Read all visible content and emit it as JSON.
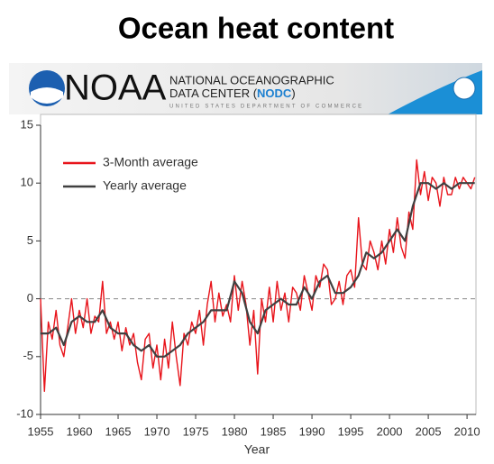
{
  "banner": {
    "logo": "NOAA",
    "line1": "NATIONAL OCEANOGRAPHIC",
    "line2": "DATA CENTER (",
    "acronym": "NODC",
    "line2_end": ")",
    "line3": "UNITED STATES DEPARTMENT OF COMMERCE"
  },
  "chart_data": {
    "type": "line",
    "title": "Ocean heat content",
    "x_label": "Year",
    "xlim": [
      1955,
      2011.5
    ],
    "xticks": [
      1955,
      1960,
      1965,
      1970,
      1975,
      1980,
      1985,
      1990,
      1995,
      2000,
      2005,
      2010
    ],
    "ylim": [
      -10,
      15
    ],
    "yticks": [
      -10,
      -5,
      0,
      5,
      10,
      15
    ],
    "reference_line": 0,
    "legend": "upper left",
    "series": [
      {
        "name": "3-Month average",
        "color": "#e8141b",
        "x": [
          1955,
          1955.5,
          1956,
          1956.5,
          1957,
          1957.5,
          1958,
          1958.5,
          1959,
          1959.5,
          1960,
          1960.5,
          1961,
          1961.5,
          1962,
          1962.5,
          1963,
          1963.5,
          1964,
          1964.5,
          1965,
          1965.5,
          1966,
          1966.5,
          1967,
          1967.5,
          1968,
          1968.5,
          1969,
          1969.5,
          1970,
          1970.5,
          1971,
          1971.5,
          1972,
          1972.5,
          1973,
          1973.5,
          1974,
          1974.5,
          1975,
          1975.5,
          1976,
          1976.5,
          1977,
          1977.5,
          1978,
          1978.5,
          1979,
          1979.5,
          1980,
          1980.5,
          1981,
          1981.5,
          1982,
          1982.5,
          1983,
          1983.5,
          1984,
          1984.5,
          1985,
          1985.5,
          1986,
          1986.5,
          1987,
          1987.5,
          1988,
          1988.5,
          1989,
          1989.5,
          1990,
          1990.5,
          1991,
          1991.5,
          1992,
          1992.5,
          1993,
          1993.5,
          1994,
          1994.5,
          1995,
          1995.5,
          1996,
          1996.5,
          1997,
          1997.5,
          1998,
          1998.5,
          1999,
          1999.5,
          2000,
          2000.5,
          2001,
          2001.5,
          2002,
          2002.5,
          2003,
          2003.5,
          2004,
          2004.5,
          2005,
          2005.5,
          2006,
          2006.5,
          2007,
          2007.5,
          2008,
          2008.5,
          2009,
          2009.5,
          2010,
          2010.5,
          2011
        ],
        "values": [
          0,
          -8,
          -2,
          -3.5,
          -1,
          -4,
          -5,
          -2.5,
          0,
          -3,
          -1,
          -2.5,
          0,
          -3,
          -1.5,
          -2,
          1.5,
          -3,
          -2,
          -3.5,
          -2,
          -4.5,
          -2.5,
          -4,
          -3,
          -5.5,
          -7,
          -3.5,
          -3,
          -6,
          -4,
          -7,
          -3.5,
          -6,
          -2,
          -5,
          -7.5,
          -3,
          -4,
          -2,
          -3,
          -1,
          -4,
          -0.5,
          1.5,
          -2,
          0.5,
          -1.5,
          -0.5,
          -2,
          2,
          -1,
          1.5,
          -0.5,
          -4,
          -1,
          -6.5,
          0,
          -2,
          1,
          -2,
          1.5,
          -1,
          0.5,
          -2,
          1,
          0.5,
          -1,
          2,
          0.5,
          -1,
          2,
          1,
          3,
          2.5,
          -0.5,
          0,
          1.5,
          -0.5,
          2,
          2.5,
          1,
          7,
          3,
          2.5,
          5,
          4,
          2.5,
          5,
          3,
          6,
          4,
          7,
          4.5,
          3.5,
          7.5,
          6,
          12,
          9,
          11,
          8.5,
          10.5,
          10,
          8,
          10.5,
          9,
          9,
          10.5,
          9.5,
          10.5,
          10,
          9.5,
          10.5
        ]
      },
      {
        "name": "Yearly average",
        "color": "#404040",
        "x": [
          1955,
          1956,
          1957,
          1958,
          1959,
          1960,
          1961,
          1962,
          1963,
          1964,
          1965,
          1966,
          1967,
          1968,
          1969,
          1970,
          1971,
          1972,
          1973,
          1974,
          1975,
          1976,
          1977,
          1978,
          1979,
          1980,
          1981,
          1982,
          1983,
          1984,
          1985,
          1986,
          1987,
          1988,
          1989,
          1990,
          1991,
          1992,
          1993,
          1994,
          1995,
          1996,
          1997,
          1998,
          1999,
          2000,
          2001,
          2002,
          2003,
          2004,
          2005,
          2006,
          2007,
          2008,
          2009,
          2010,
          2011
        ],
        "values": [
          -3,
          -3,
          -2.5,
          -4,
          -2,
          -1.5,
          -2,
          -2,
          -1,
          -2.5,
          -3,
          -3,
          -4,
          -4.5,
          -4,
          -5,
          -5,
          -4.5,
          -4,
          -3,
          -2.5,
          -2,
          -1,
          -1,
          -1,
          1.5,
          0.5,
          -2,
          -3,
          -1,
          -0.5,
          0,
          -0.5,
          -0.5,
          1,
          0,
          1.5,
          2,
          0.5,
          0.5,
          1,
          2,
          4,
          3.5,
          4,
          5,
          6,
          5,
          8,
          10,
          10,
          9.5,
          10,
          9.5,
          10,
          10,
          10
        ]
      }
    ]
  }
}
